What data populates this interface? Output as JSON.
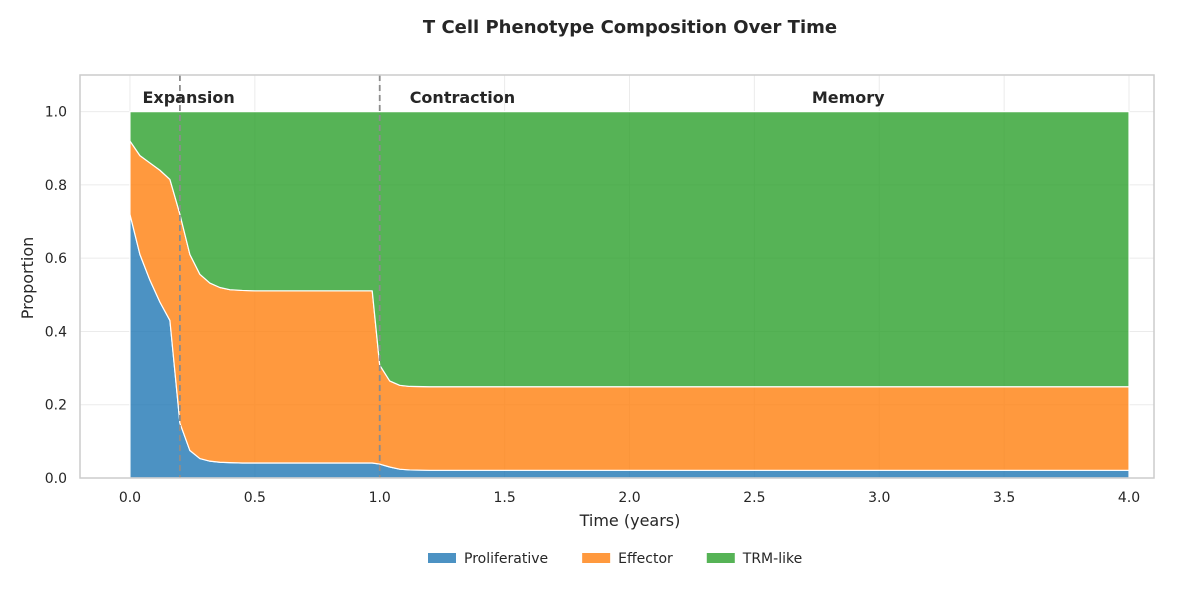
{
  "chart_data": {
    "type": "area",
    "stacked": true,
    "title": "T Cell Phenotype Composition Over Time",
    "xlabel": "Time (years)",
    "ylabel": "Proportion",
    "xlim": [
      -0.2,
      4.1
    ],
    "ylim": [
      0,
      1.1
    ],
    "xticks": [
      "0.0",
      "0.5",
      "1.0",
      "1.5",
      "2.0",
      "2.5",
      "3.0",
      "3.5",
      "4.0"
    ],
    "yticks": [
      "0.0",
      "0.2",
      "0.4",
      "0.6",
      "0.8",
      "1.0"
    ],
    "grid": true,
    "legend_position": "bottom-center",
    "x": [
      0,
      0.04,
      0.08,
      0.12,
      0.16,
      0.2,
      0.24,
      0.28,
      0.32,
      0.36,
      0.4,
      0.45,
      0.5,
      0.6,
      0.7,
      0.8,
      0.9,
      0.97,
      1.0,
      1.04,
      1.08,
      1.12,
      1.2,
      1.5,
      2.0,
      2.5,
      3.0,
      3.5,
      4.0
    ],
    "series": [
      {
        "name": "Proliferative",
        "color": "#1f77b4",
        "values": [
          0.72,
          0.61,
          0.54,
          0.48,
          0.43,
          0.15,
          0.075,
          0.053,
          0.046,
          0.043,
          0.042,
          0.041,
          0.041,
          0.041,
          0.041,
          0.041,
          0.041,
          0.041,
          0.038,
          0.03,
          0.024,
          0.022,
          0.021,
          0.021,
          0.021,
          0.021,
          0.021,
          0.021,
          0.021
        ]
      },
      {
        "name": "Effector",
        "color": "#ff7f0e",
        "values": [
          0.2,
          0.27,
          0.32,
          0.36,
          0.385,
          0.57,
          0.535,
          0.503,
          0.486,
          0.477,
          0.472,
          0.471,
          0.47,
          0.47,
          0.47,
          0.47,
          0.47,
          0.47,
          0.27,
          0.235,
          0.229,
          0.228,
          0.228,
          0.228,
          0.228,
          0.228,
          0.228,
          0.228,
          0.228
        ]
      },
      {
        "name": "TRM-like",
        "color": "#2ca02c",
        "values": [
          0.08,
          0.12,
          0.14,
          0.16,
          0.185,
          0.28,
          0.39,
          0.444,
          0.468,
          0.48,
          0.486,
          0.488,
          0.489,
          0.489,
          0.489,
          0.489,
          0.489,
          0.489,
          0.692,
          0.735,
          0.747,
          0.75,
          0.751,
          0.751,
          0.751,
          0.751,
          0.751,
          0.751,
          0.751
        ]
      }
    ],
    "phase_lines": [
      0.2,
      1.0
    ],
    "annotations": [
      {
        "text": "Expansion",
        "x": 0.05
      },
      {
        "text": "Contraction",
        "x": 1.12
      },
      {
        "text": "Memory",
        "x": 2.73
      }
    ]
  }
}
